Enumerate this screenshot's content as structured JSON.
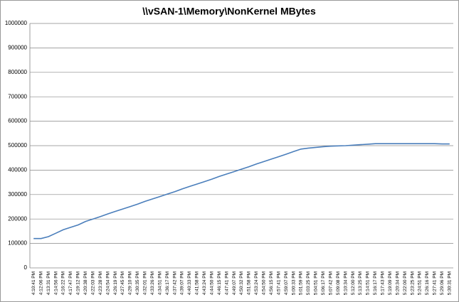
{
  "chart_data": {
    "type": "line",
    "title": "\\\\vSAN-1\\Memory\\NonKernel MBytes",
    "categories": [
      "4:10:41 PM",
      "4:12:06 PM",
      "4:13:31 PM",
      "4:14:56 PM",
      "4:16:22 PM",
      "4:17:47 PM",
      "4:19:12 PM",
      "4:20:38 PM",
      "4:22:03 PM",
      "4:23:28 PM",
      "4:24:54 PM",
      "4:26:19 PM",
      "4:27:45 PM",
      "4:29:10 PM",
      "4:30:35 PM",
      "4:32:01 PM",
      "4:33:26 PM",
      "4:34:51 PM",
      "4:36:17 PM",
      "4:37:42 PM",
      "4:39:07 PM",
      "4:40:33 PM",
      "4:41:58 PM",
      "4:43:24 PM",
      "4:44:50 PM",
      "4:46:15 PM",
      "4:47:41 PM",
      "4:49:07 PM",
      "4:50:32 PM",
      "4:51:58 PM",
      "4:53:24 PM",
      "4:54:50 PM",
      "4:56:15 PM",
      "4:57:41 PM",
      "4:59:07 PM",
      "5:00:33 PM",
      "5:01:59 PM",
      "5:03:25 PM",
      "5:04:51 PM",
      "5:06:17 PM",
      "5:07:42 PM",
      "5:09:08 PM",
      "5:10:34 PM",
      "5:12:00 PM",
      "5:13:25 PM",
      "5:14:51 PM",
      "5:16:17 PM",
      "5:17:43 PM",
      "5:19:09 PM",
      "5:20:34 PM",
      "5:22:00 PM",
      "5:23:25 PM",
      "5:24:51 PM",
      "5:26:16 PM",
      "5:27:41 PM",
      "5:29:06 PM",
      "5:30:31 PM"
    ],
    "values": [
      120000,
      120000,
      128000,
      142000,
      156000,
      166000,
      176000,
      190000,
      200000,
      210000,
      221000,
      231000,
      241000,
      251000,
      261000,
      272000,
      282000,
      292000,
      302000,
      312000,
      323000,
      333000,
      343000,
      353000,
      363000,
      374000,
      384000,
      394000,
      404000,
      414000,
      425000,
      435000,
      445000,
      455000,
      465000,
      476000,
      486000,
      490000,
      493000,
      496000,
      498000,
      499000,
      500000,
      502000,
      504000,
      506000,
      508000,
      508000,
      508000,
      508000,
      508000,
      508000,
      508000,
      508000,
      508000,
      507000,
      507000
    ],
    "color": "#4a7ebb",
    "ylim": [
      0,
      1000000
    ],
    "yticks": [
      0,
      100000,
      200000,
      300000,
      400000,
      500000,
      600000,
      700000,
      800000,
      900000,
      1000000
    ],
    "grid": true
  }
}
